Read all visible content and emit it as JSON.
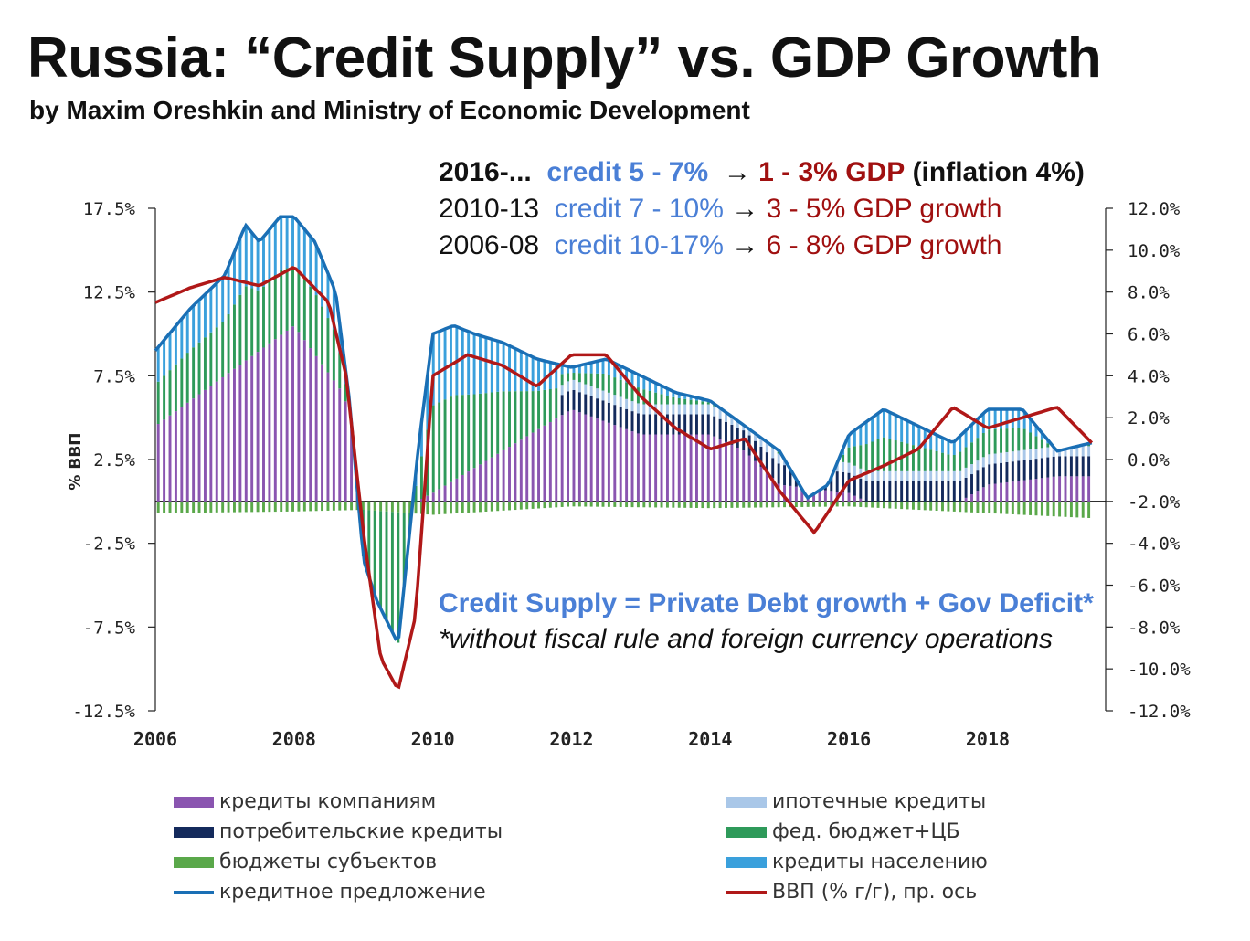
{
  "header": {
    "title": "Russia: “Credit Supply” vs. GDP Growth",
    "subtitle": "by Maxim Oreshkin and Ministry of Economic Development"
  },
  "annotations": {
    "line1": {
      "period": "2016-...",
      "credit": "credit 5 - 7%",
      "arrow": "→",
      "gdp": "1 - 3% GDP",
      "extra": "(inflation 4%)"
    },
    "line2": {
      "period": "2010-13",
      "credit": "credit 7 - 10%",
      "arrow": "→",
      "gdp": "3 - 5% GDP growth"
    },
    "line3": {
      "period": "2006-08",
      "credit": "credit 10-17%",
      "arrow": "→",
      "gdp": "6 - 8% GDP growth"
    },
    "equation": "Credit Supply = Private Debt growth + Gov Deficit*",
    "footnote": "*without fiscal rule and foreign currency operations"
  },
  "colors": {
    "companies": "#8a55b0",
    "consumer": "#142a5c",
    "regional": "#5aa84a",
    "mortgage": "#a9c7e8",
    "federal": "#2e9a5a",
    "households": "#3aa0dc",
    "credit_line": "#1a6fb5",
    "gdp_line": "#b01818"
  },
  "chart_data": {
    "type": "bar",
    "title": "Russia: “Credit Supply” vs. GDP Growth",
    "ylabel": "% ВВП",
    "ylim": [
      -12.5,
      17.5
    ],
    "y2lim": [
      -12.0,
      12.0
    ],
    "left_ticks": [
      "17.5%",
      "12.5%",
      "7.5%",
      "2.5%",
      "-2.5%",
      "-7.5%",
      "-12.5%"
    ],
    "left_tick_values": [
      17.5,
      12.5,
      7.5,
      2.5,
      -2.5,
      -7.5,
      -12.5
    ],
    "right_ticks": [
      "12.0%",
      "10.0%",
      "8.0%",
      "6.0%",
      "4.0%",
      "2.0%",
      "0.0%",
      "-2.0%",
      "-4.0%",
      "-6.0%",
      "-8.0%",
      "-10.0%",
      "-12.0%"
    ],
    "right_tick_values": [
      12,
      10,
      8,
      6,
      4,
      2,
      0,
      -2,
      -4,
      -6,
      -8,
      -10,
      -12
    ],
    "x_ticks": [
      "2006",
      "2008",
      "2010",
      "2012",
      "2014",
      "2016",
      "2018"
    ],
    "x_tick_values": [
      2006,
      2008,
      2010,
      2012,
      2014,
      2016,
      2018
    ],
    "xlim": [
      2006,
      2019.7
    ],
    "legend": [
      {
        "key": "companies",
        "label": "кредиты компаниям",
        "kind": "bar"
      },
      {
        "key": "mortgage",
        "label": "ипотечные кредиты",
        "kind": "bar"
      },
      {
        "key": "consumer",
        "label": "потребительские кредиты",
        "kind": "bar"
      },
      {
        "key": "federal",
        "label": "фед. бюджет+ЦБ",
        "kind": "bar"
      },
      {
        "key": "regional",
        "label": "бюджеты субъектов",
        "kind": "bar"
      },
      {
        "key": "households",
        "label": "кредиты населению",
        "kind": "bar"
      },
      {
        "key": "credit_line",
        "label": "кредитное предложение",
        "kind": "line"
      },
      {
        "key": "gdp_line",
        "label": "ВВП (% г/г), пр. ось",
        "kind": "line"
      }
    ],
    "series": [
      {
        "name": "кредитное предложение",
        "axis": "left",
        "x": [
          2006.0,
          2006.5,
          2007.0,
          2007.3,
          2007.5,
          2007.8,
          2008.0,
          2008.3,
          2008.6,
          2008.8,
          2009.0,
          2009.2,
          2009.5,
          2009.8,
          2010.0,
          2010.3,
          2010.6,
          2011.0,
          2011.5,
          2012.0,
          2012.5,
          2013.0,
          2013.5,
          2014.0,
          2014.5,
          2015.0,
          2015.4,
          2015.7,
          2016.0,
          2016.5,
          2017.0,
          2017.5,
          2018.0,
          2018.5,
          2019.0,
          2019.5
        ],
        "values": [
          9.0,
          11.5,
          13.5,
          16.5,
          15.5,
          17.0,
          17.0,
          15.5,
          12.5,
          6.0,
          -3.5,
          -6.0,
          -8.5,
          3.5,
          10.0,
          10.5,
          10.0,
          9.5,
          8.5,
          8.0,
          8.5,
          7.5,
          6.5,
          6.0,
          4.5,
          3.0,
          0.2,
          1.0,
          4.0,
          5.5,
          4.5,
          3.5,
          5.5,
          5.5,
          3.0,
          3.5
        ]
      },
      {
        "name": "ВВП (% г/г), пр. ось",
        "axis": "right",
        "x": [
          2006.0,
          2006.5,
          2007.0,
          2007.5,
          2008.0,
          2008.5,
          2008.75,
          2009.0,
          2009.25,
          2009.5,
          2009.75,
          2010.0,
          2010.5,
          2011.0,
          2011.5,
          2012.0,
          2012.5,
          2013.0,
          2013.5,
          2014.0,
          2014.5,
          2015.0,
          2015.5,
          2016.0,
          2016.5,
          2017.0,
          2017.5,
          2018.0,
          2018.5,
          2019.0,
          2019.5
        ],
        "values": [
          7.5,
          8.2,
          8.7,
          8.3,
          9.2,
          7.5,
          4.0,
          -3.5,
          -9.5,
          -11.0,
          -7.5,
          4.0,
          5.0,
          4.5,
          3.5,
          5.0,
          5.0,
          3.0,
          1.5,
          0.5,
          1.0,
          -1.5,
          -3.5,
          -1.0,
          -0.3,
          0.5,
          2.5,
          1.5,
          2.0,
          2.5,
          0.8
        ]
      },
      {
        "name": "кредиты компаниям",
        "axis": "left",
        "x": [
          2006.0,
          2007.0,
          2008.0,
          2008.7,
          2009.3,
          2010.0,
          2011.0,
          2012.0,
          2013.0,
          2014.0,
          2014.5,
          2015.0,
          2016.0,
          2017.0,
          2018.0,
          2019.0,
          2019.5
        ],
        "values": [
          4.5,
          7.5,
          10.5,
          6.5,
          -1.0,
          0.5,
          3.0,
          5.5,
          4.0,
          4.0,
          3.0,
          1.0,
          0.5,
          -1.5,
          1.0,
          1.5,
          1.5
        ]
      },
      {
        "name": "бюджеты субъектов",
        "axis": "left",
        "x": [
          2006.0,
          2008.0,
          2009.0,
          2010.0,
          2012.0,
          2014.0,
          2016.0,
          2019.5
        ],
        "values": [
          -0.7,
          -0.6,
          -0.5,
          -0.8,
          -0.3,
          -0.4,
          -0.3,
          -1.0
        ]
      }
    ]
  }
}
